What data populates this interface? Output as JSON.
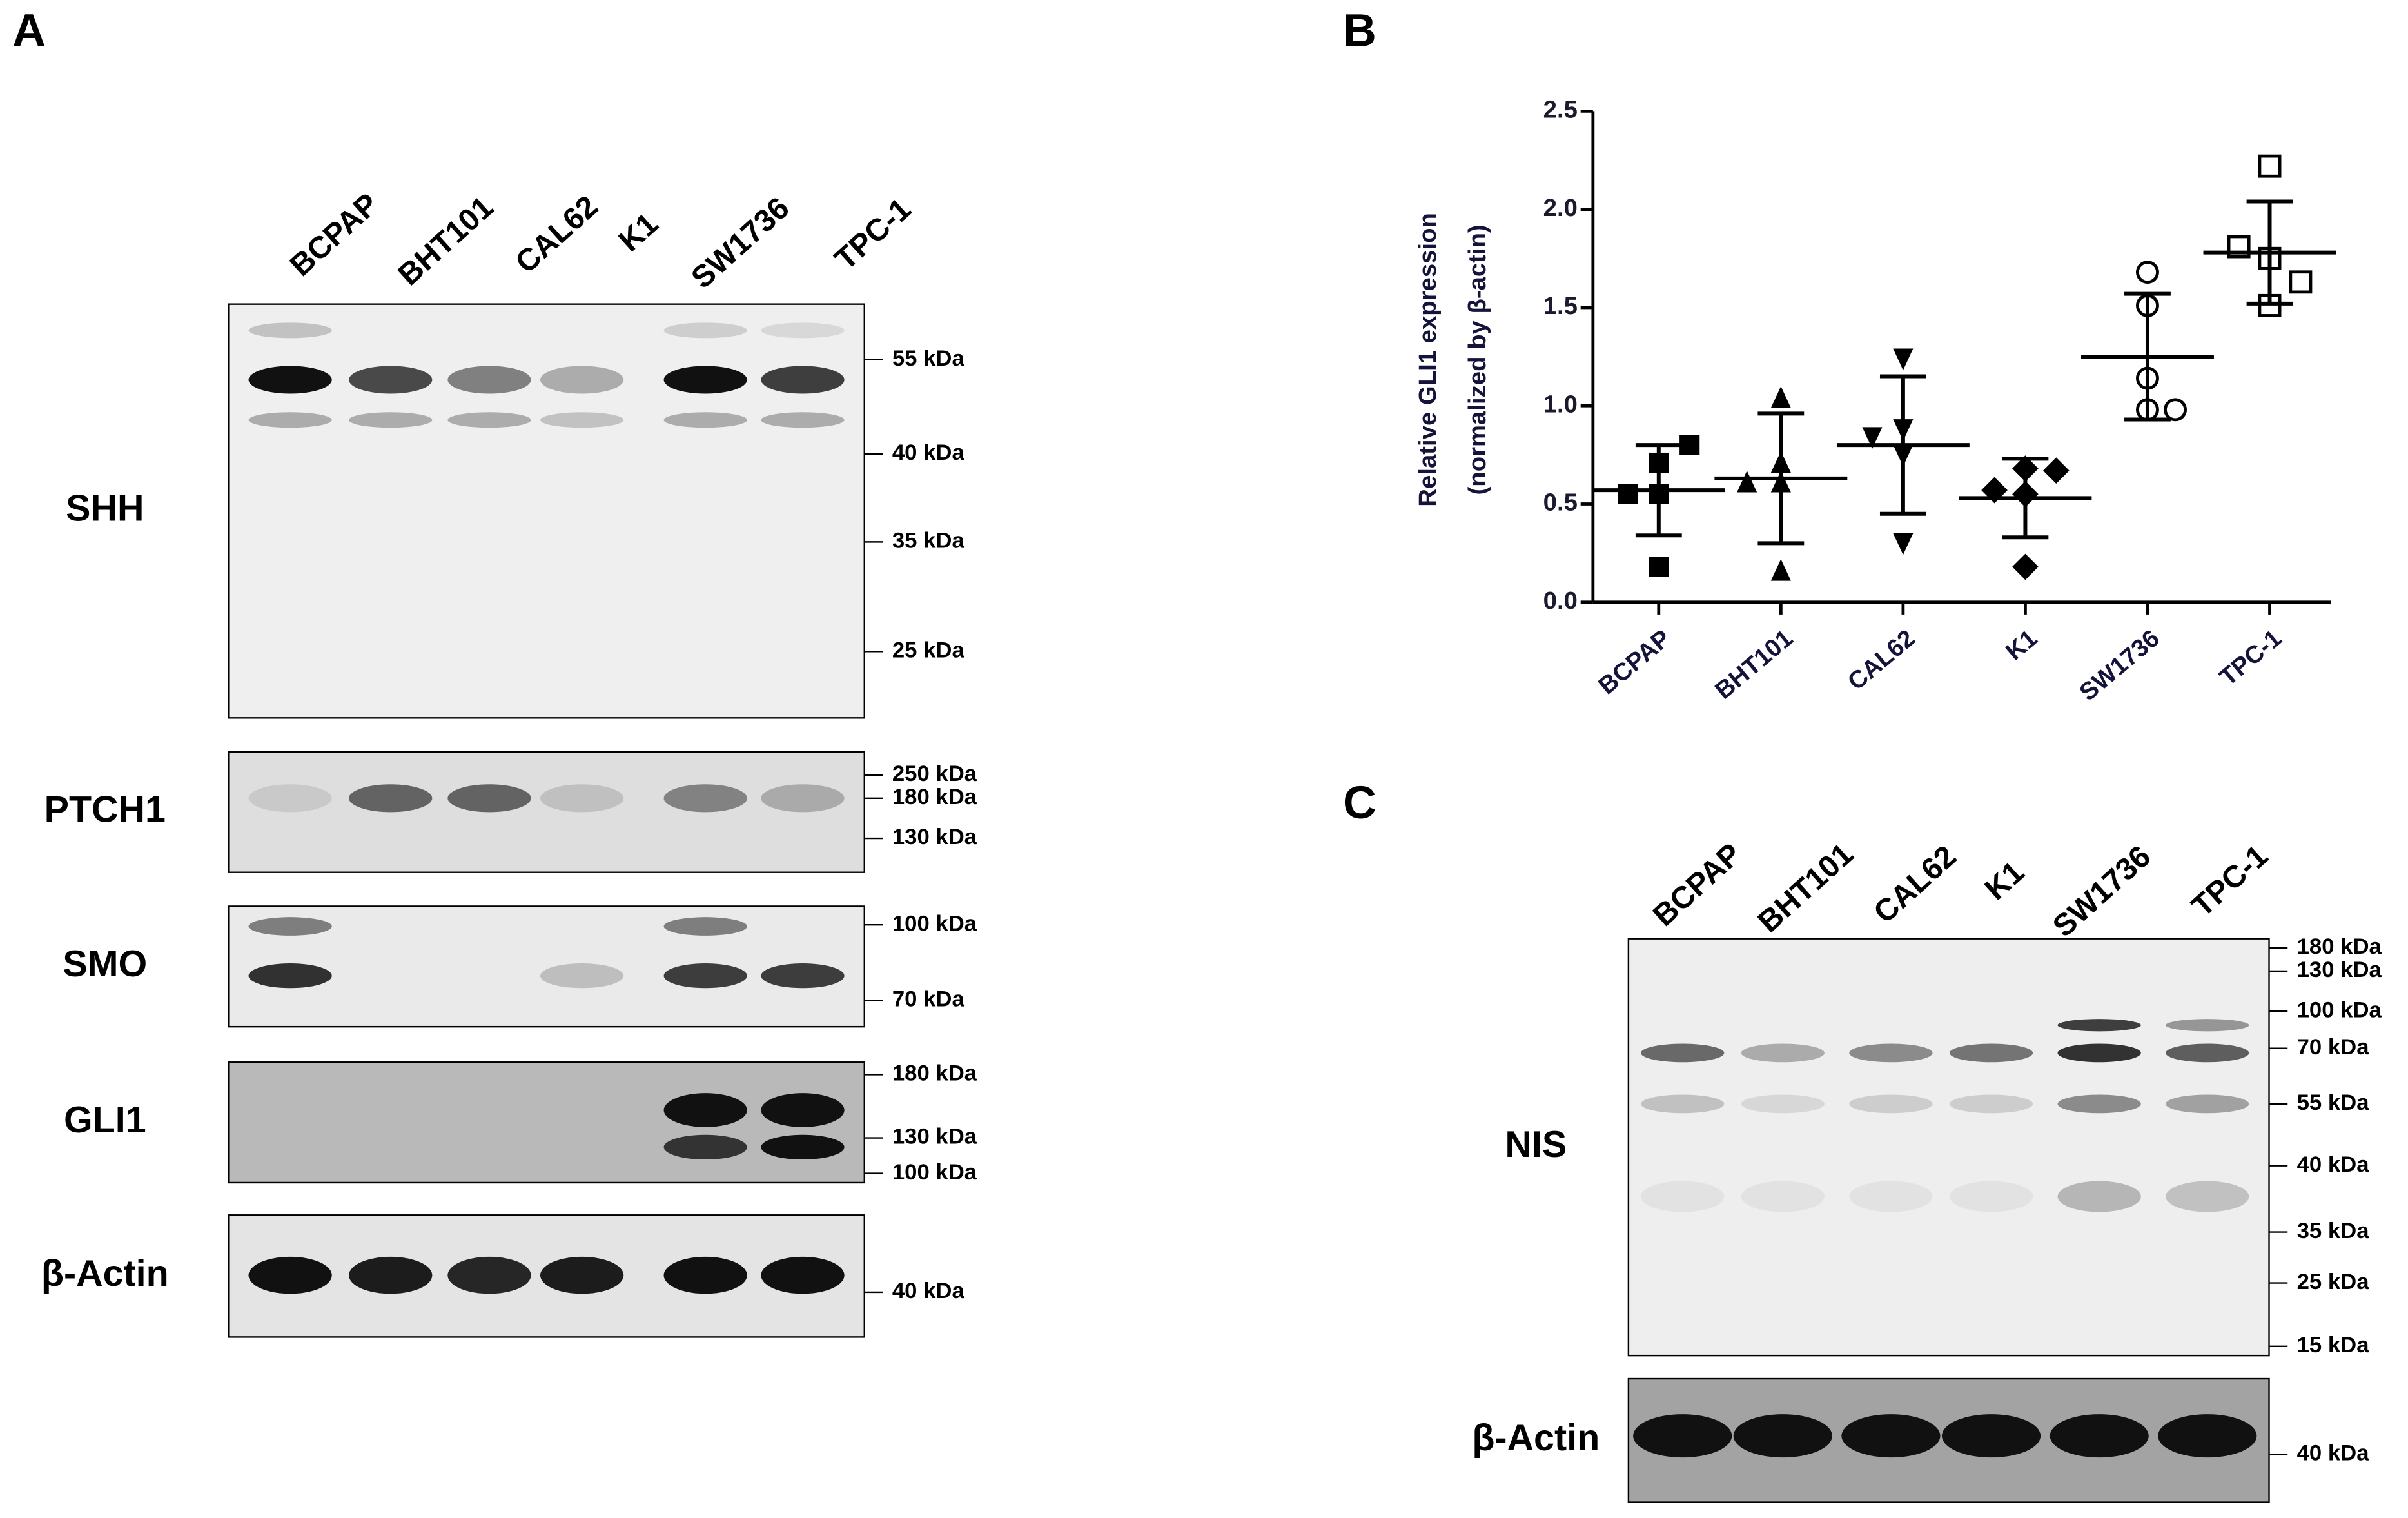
{
  "panel_labels": [
    "A",
    "B",
    "C"
  ],
  "panel_a": {
    "lanes": [
      "BCPAP",
      "BHT101",
      "CAL62",
      "K1",
      "SW1736",
      "TPC-1"
    ],
    "blots": [
      {
        "name": "SHH",
        "markers": [
          "55 kDa",
          "40 kDa",
          "35 kDa",
          "25 kDa"
        ]
      },
      {
        "name": "PTCH1",
        "markers": [
          "250 kDa",
          "180 kDa",
          "130 kDa"
        ]
      },
      {
        "name": "SMO",
        "markers": [
          "100 kDa",
          "70 kDa"
        ]
      },
      {
        "name": "GLI1",
        "markers": [
          "180 kDa",
          "130 kDa",
          "100 kDa"
        ]
      },
      {
        "name": "β-Actin",
        "markers": [
          "40 kDa"
        ]
      }
    ]
  },
  "chart_data": {
    "type": "scatter",
    "ylabel": [
      "Relative GLI1 expression",
      "(normalized by β-actin)"
    ],
    "categories": [
      "BCPAP",
      "BHT101",
      "CAL62",
      "K1",
      "SW1736",
      "TPC-1"
    ],
    "points": [
      [
        0.8,
        0.71,
        0.55,
        0.55,
        0.18
      ],
      [
        1.04,
        0.61,
        0.61,
        0.71,
        0.16
      ],
      [
        1.24,
        0.84,
        0.88,
        0.75,
        0.3
      ],
      [
        0.57,
        0.68,
        0.67,
        0.55,
        0.18
      ],
      [
        1.68,
        1.51,
        1.14,
        0.98,
        0.98
      ],
      [
        2.22,
        1.81,
        1.75,
        1.63,
        1.51
      ]
    ],
    "means": [
      0.57,
      0.63,
      0.8,
      0.53,
      1.25,
      1.78
    ],
    "sd": [
      0.23,
      0.33,
      0.35,
      0.2,
      0.32,
      0.26
    ],
    "markers": [
      "square",
      "triangle",
      "triangle-down",
      "diamond",
      "open-circle",
      "open-square"
    ],
    "color": "#000000",
    "ylim": [
      0,
      2.5
    ],
    "yticks": [
      {
        "value": 0,
        "label": "0.0"
      },
      0.5,
      {
        "value": 1,
        "label": "1.0"
      },
      1.5,
      {
        "value": 2,
        "label": "2.0"
      },
      2.5
    ]
  },
  "panel_c": {
    "lanes": [
      "BCPAP",
      "BHT101",
      "CAL62",
      "K1",
      "SW1736",
      "TPC-1"
    ],
    "blots": [
      {
        "name": "NIS",
        "markers": [
          "180 kDa",
          "130 kDa",
          "100 kDa",
          "70 kDa",
          "55 kDa",
          "40 kDa",
          "35 kDa",
          "25 kDa",
          "15 kDa"
        ]
      },
      {
        "name": "β-Actin",
        "markers": [
          "40 kDa"
        ]
      }
    ]
  }
}
